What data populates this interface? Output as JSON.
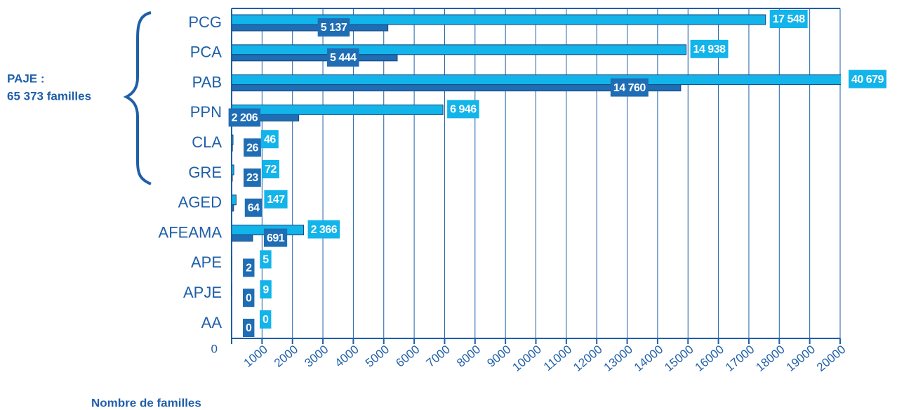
{
  "chart_data": {
    "type": "bar",
    "orientation": "horizontal",
    "categories": [
      "PCG",
      "PCA",
      "PAB",
      "PPN",
      "CLA",
      "GRE",
      "AGED",
      "AFEAMA",
      "APE",
      "APJE",
      "AA"
    ],
    "series": [
      {
        "color": "#12b4ea",
        "values": [
          17548,
          14938,
          40679,
          6946,
          46,
          72,
          147,
          2366,
          5,
          9,
          0
        ],
        "value_labels": [
          "17 548",
          "14 938",
          "40 679",
          "6 946",
          "46",
          "72",
          "147",
          "2 366",
          "5",
          "9",
          "0"
        ]
      },
      {
        "color": "#1f6db4",
        "values": [
          5137,
          5444,
          14760,
          2206,
          26,
          23,
          64,
          691,
          2,
          0,
          0
        ],
        "value_labels": [
          "5 137",
          "5 444",
          "14 760",
          "2 206",
          "26",
          "23",
          "64",
          "691",
          "2",
          "0",
          "0"
        ]
      }
    ],
    "xlim": [
      0,
      20000
    ],
    "xticks": [
      0,
      1000,
      2000,
      3000,
      4000,
      5000,
      6000,
      7000,
      8000,
      9000,
      10000,
      11000,
      12000,
      13000,
      14000,
      15000,
      16000,
      17000,
      18000,
      19000,
      20000
    ],
    "grid": true,
    "xlabel": "Nombre de familles",
    "annotations": [
      "PAJE :",
      "65 373 familles"
    ]
  }
}
